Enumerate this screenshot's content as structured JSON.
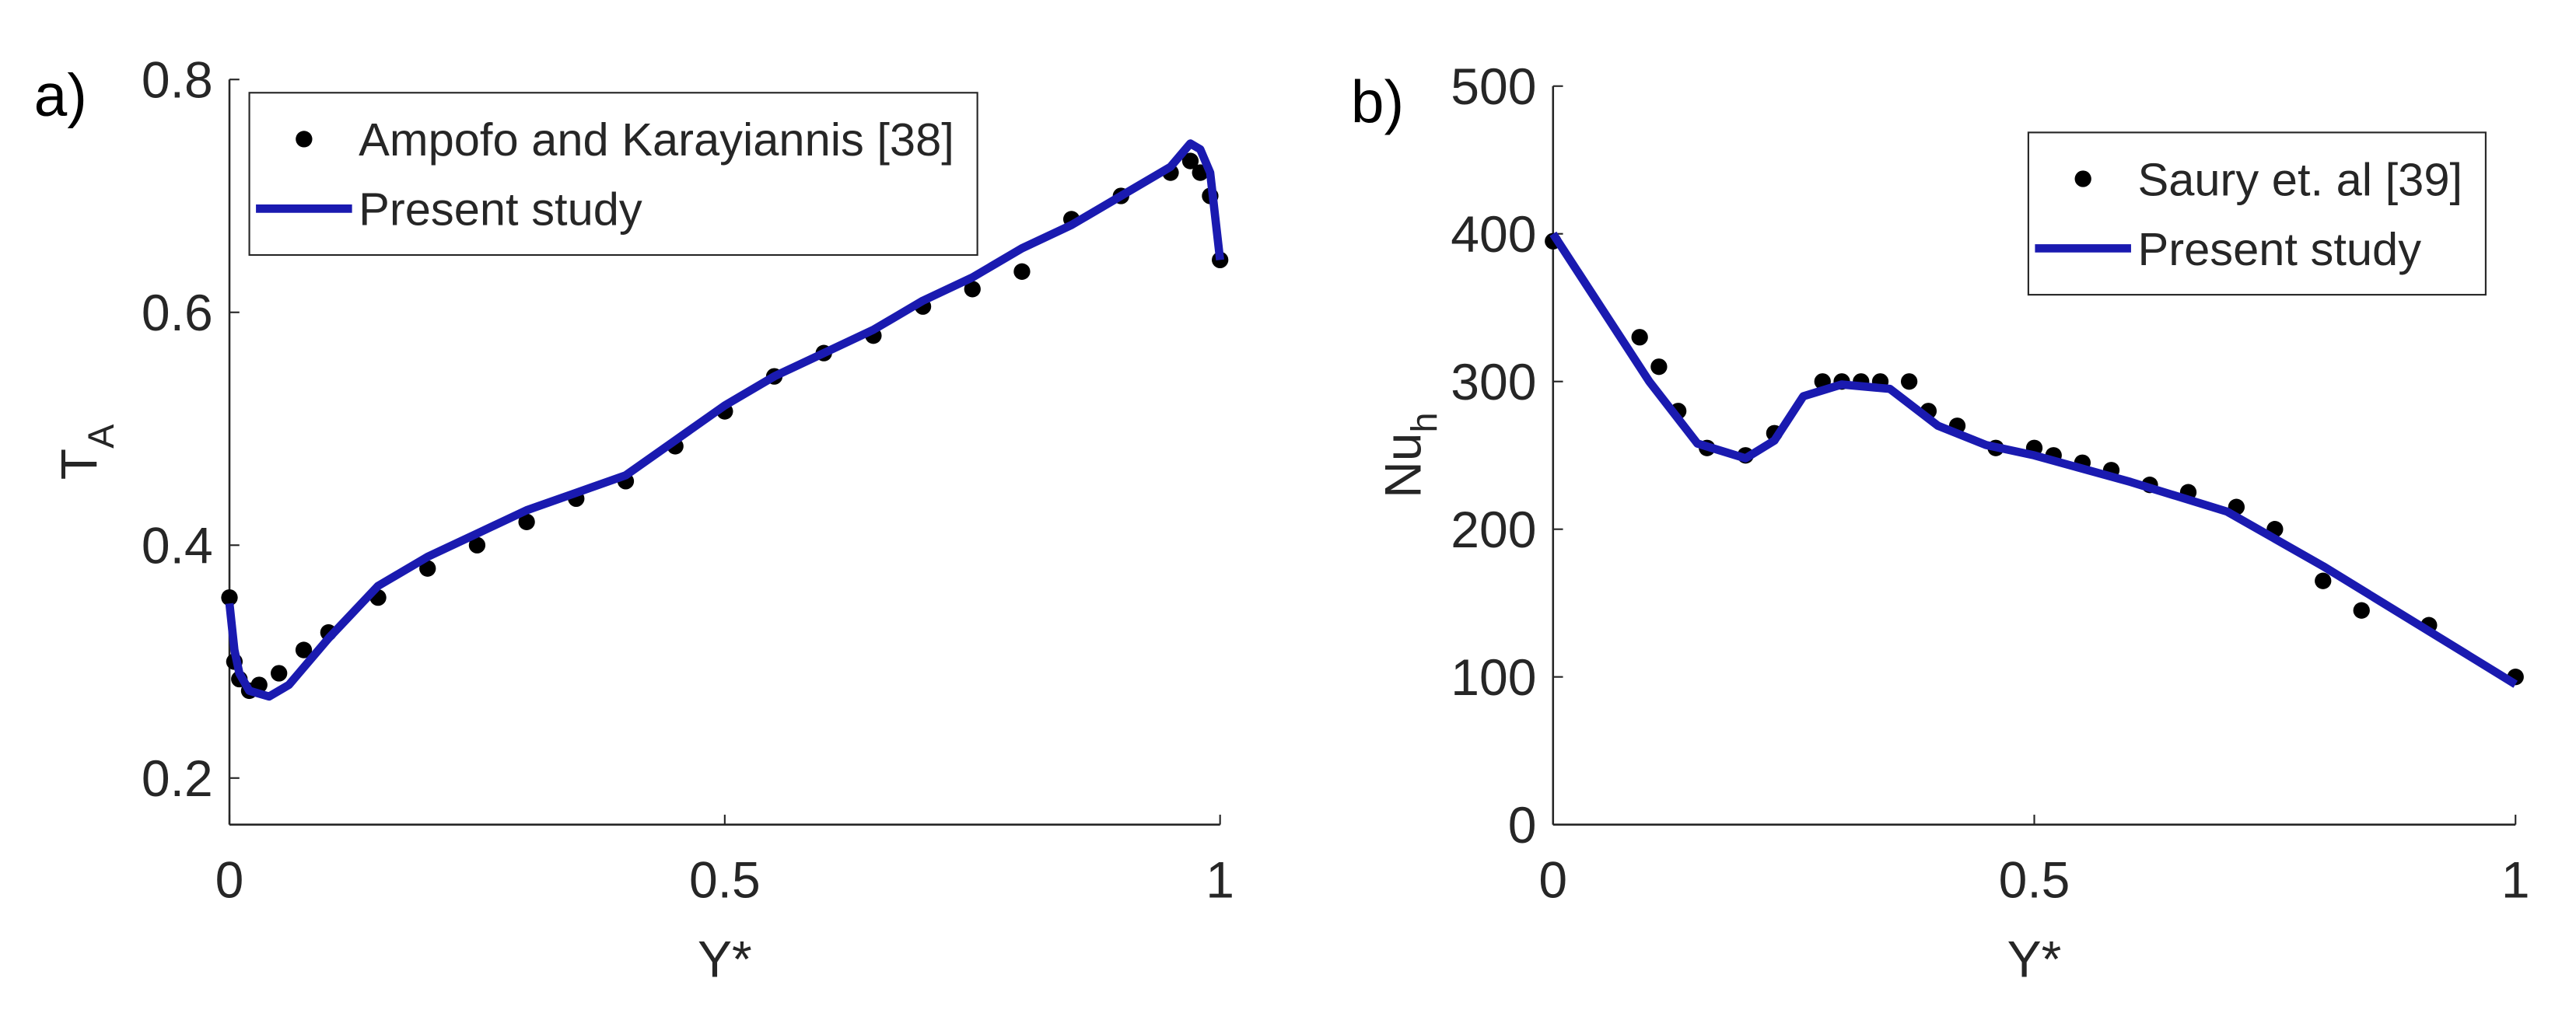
{
  "chart_data": [
    {
      "type": "line",
      "panel_label": "a)",
      "xlabel": "Y*",
      "ylabel": {
        "text": "T",
        "sub": "A"
      },
      "xlim": [
        0,
        1
      ],
      "ylim": [
        0.16,
        0.8
      ],
      "xticks": [
        0,
        0.5,
        1
      ],
      "yticks": [
        0.2,
        0.4,
        0.6,
        0.8
      ],
      "legend": "upper left",
      "series": [
        {
          "name": "Ampofo and Karayiannis [38]",
          "color": "#000000",
          "mode": "markers",
          "x": [
            0,
            0.005,
            0.01,
            0.02,
            0.03,
            0.05,
            0.075,
            0.1,
            0.15,
            0.2,
            0.25,
            0.3,
            0.35,
            0.4,
            0.45,
            0.5,
            0.55,
            0.6,
            0.65,
            0.7,
            0.75,
            0.8,
            0.85,
            0.9,
            0.95,
            0.97,
            0.98,
            0.99,
            1.0
          ],
          "values": [
            0.355,
            0.3,
            0.285,
            0.275,
            0.28,
            0.29,
            0.31,
            0.325,
            0.355,
            0.38,
            0.4,
            0.42,
            0.44,
            0.455,
            0.485,
            0.515,
            0.545,
            0.565,
            0.58,
            0.605,
            0.62,
            0.635,
            0.68,
            0.7,
            0.72,
            0.73,
            0.72,
            0.7,
            0.645
          ]
        },
        {
          "name": "Present study",
          "color": "#1a1ab0",
          "mode": "line",
          "x": [
            0,
            0.005,
            0.01,
            0.02,
            0.04,
            0.06,
            0.1,
            0.15,
            0.2,
            0.25,
            0.3,
            0.35,
            0.4,
            0.45,
            0.5,
            0.55,
            0.6,
            0.65,
            0.7,
            0.75,
            0.8,
            0.85,
            0.9,
            0.95,
            0.97,
            0.98,
            0.99,
            1.0
          ],
          "values": [
            0.35,
            0.31,
            0.29,
            0.275,
            0.27,
            0.28,
            0.32,
            0.365,
            0.39,
            0.41,
            0.43,
            0.445,
            0.46,
            0.49,
            0.52,
            0.545,
            0.565,
            0.585,
            0.61,
            0.63,
            0.655,
            0.675,
            0.7,
            0.725,
            0.745,
            0.74,
            0.72,
            0.645
          ]
        }
      ]
    },
    {
      "type": "line",
      "panel_label": "b)",
      "xlabel": "Y*",
      "ylabel": {
        "text": "Nu",
        "sub": "h"
      },
      "xlim": [
        0,
        1
      ],
      "ylim": [
        0,
        500
      ],
      "xticks": [
        0,
        0.5,
        1
      ],
      "yticks": [
        0,
        100,
        200,
        300,
        400,
        500
      ],
      "legend": "upper right",
      "series": [
        {
          "name": "Saury et. al [39]",
          "color": "#000000",
          "mode": "markers",
          "x": [
            0,
            0.09,
            0.11,
            0.13,
            0.16,
            0.2,
            0.23,
            0.28,
            0.3,
            0.32,
            0.34,
            0.37,
            0.39,
            0.42,
            0.46,
            0.5,
            0.52,
            0.55,
            0.58,
            0.62,
            0.66,
            0.71,
            0.75,
            0.8,
            0.84,
            0.91,
            1.0
          ],
          "values": [
            395,
            330,
            310,
            280,
            255,
            250,
            265,
            300,
            300,
            300,
            300,
            300,
            280,
            270,
            255,
            255,
            250,
            245,
            240,
            230,
            225,
            215,
            200,
            165,
            145,
            135,
            100
          ]
        },
        {
          "name": "Present study",
          "color": "#1a1ab0",
          "mode": "line",
          "x": [
            0,
            0.05,
            0.1,
            0.15,
            0.2,
            0.23,
            0.26,
            0.3,
            0.35,
            0.4,
            0.45,
            0.5,
            0.6,
            0.7,
            0.8,
            0.9,
            1.0
          ],
          "values": [
            400,
            350,
            300,
            258,
            248,
            260,
            290,
            298,
            295,
            270,
            257,
            250,
            232,
            212,
            175,
            135,
            95
          ]
        }
      ]
    }
  ]
}
